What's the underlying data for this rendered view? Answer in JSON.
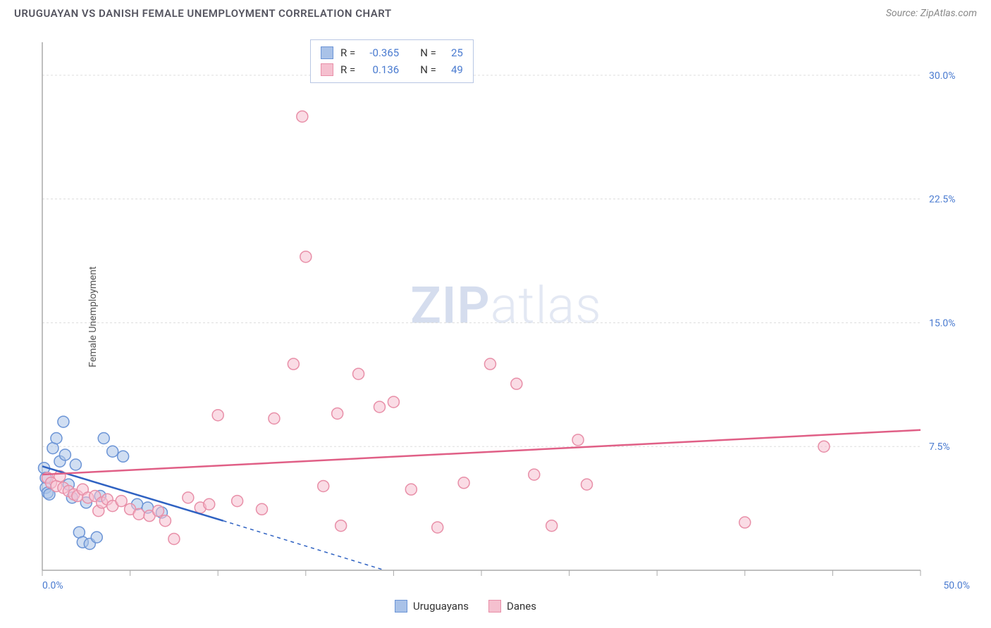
{
  "header": {
    "title": "URUGUAYAN VS DANISH FEMALE UNEMPLOYMENT CORRELATION CHART",
    "source": "Source: ZipAtlas.com"
  },
  "watermark": {
    "prefix": "ZIP",
    "suffix": "atlas"
  },
  "chart": {
    "type": "scatter",
    "y_axis_title": "Female Unemployment",
    "background_color": "#ffffff",
    "grid_color": "#dddddd",
    "axis_color": "#aaaaaa",
    "label_color": "#4a7bd0",
    "label_fontsize": 14,
    "xlim": [
      0,
      50
    ],
    "ylim": [
      0,
      32
    ],
    "x_ticks": [
      0,
      5,
      10,
      15,
      20,
      25,
      30,
      35,
      40,
      45,
      50
    ],
    "x_tick_labels": {
      "0": "0.0%",
      "50": "50.0%"
    },
    "y_ticks": [
      7.5,
      15.0,
      22.5,
      30.0
    ],
    "y_tick_labels": {
      "7.5": "7.5%",
      "15.0": "15.0%",
      "22.5": "22.5%",
      "30.0": "30.0%"
    },
    "marker_radius": 8,
    "marker_stroke_width": 1.5,
    "series": [
      {
        "name": "Uruguayans",
        "fill_color": "#a9c2e8",
        "stroke_color": "#6b94d6",
        "trend_color": "#2f62c2",
        "r": "-0.365",
        "n": "25",
        "trend": {
          "x1": 0,
          "y1": 6.3,
          "x2": 10.3,
          "y2": 3.0,
          "dash_x2": 19.5,
          "dash_y2": 0
        },
        "points": [
          [
            0.1,
            6.2
          ],
          [
            0.2,
            5.6
          ],
          [
            0.2,
            5.0
          ],
          [
            0.3,
            4.7
          ],
          [
            0.4,
            4.6
          ],
          [
            0.6,
            7.4
          ],
          [
            0.8,
            8.0
          ],
          [
            1.0,
            6.6
          ],
          [
            1.2,
            9.0
          ],
          [
            1.3,
            7.0
          ],
          [
            1.5,
            5.2
          ],
          [
            1.7,
            4.4
          ],
          [
            1.9,
            6.4
          ],
          [
            2.1,
            2.3
          ],
          [
            2.3,
            1.7
          ],
          [
            2.5,
            4.1
          ],
          [
            2.7,
            1.6
          ],
          [
            3.1,
            2.0
          ],
          [
            3.3,
            4.5
          ],
          [
            3.5,
            8.0
          ],
          [
            4.0,
            7.2
          ],
          [
            4.6,
            6.9
          ],
          [
            5.4,
            4.0
          ],
          [
            6.0,
            3.8
          ],
          [
            6.8,
            3.5
          ]
        ]
      },
      {
        "name": "Danes",
        "fill_color": "#f5c0cf",
        "stroke_color": "#e88fa8",
        "trend_color": "#e05f86",
        "r": "0.136",
        "n": "49",
        "trend": {
          "x1": 0,
          "y1": 5.8,
          "x2": 50,
          "y2": 8.5
        },
        "points": [
          [
            0.3,
            5.6
          ],
          [
            0.5,
            5.3
          ],
          [
            0.8,
            5.1
          ],
          [
            1.0,
            5.7
          ],
          [
            1.2,
            5.0
          ],
          [
            1.5,
            4.8
          ],
          [
            1.8,
            4.6
          ],
          [
            2.0,
            4.5
          ],
          [
            2.3,
            4.9
          ],
          [
            2.6,
            4.4
          ],
          [
            3.0,
            4.5
          ],
          [
            3.2,
            3.6
          ],
          [
            3.4,
            4.1
          ],
          [
            3.7,
            4.3
          ],
          [
            4.0,
            3.9
          ],
          [
            4.5,
            4.2
          ],
          [
            5.0,
            3.7
          ],
          [
            5.5,
            3.4
          ],
          [
            6.1,
            3.3
          ],
          [
            6.6,
            3.6
          ],
          [
            7.0,
            3.0
          ],
          [
            7.5,
            1.9
          ],
          [
            8.3,
            4.4
          ],
          [
            9.0,
            3.8
          ],
          [
            9.5,
            4.0
          ],
          [
            10.0,
            9.4
          ],
          [
            11.1,
            4.2
          ],
          [
            12.5,
            3.7
          ],
          [
            13.2,
            9.2
          ],
          [
            14.3,
            12.5
          ],
          [
            14.8,
            27.5
          ],
          [
            15.0,
            19.0
          ],
          [
            16.0,
            5.1
          ],
          [
            16.8,
            9.5
          ],
          [
            17.0,
            2.7
          ],
          [
            18.0,
            11.9
          ],
          [
            19.2,
            9.9
          ],
          [
            20.0,
            10.2
          ],
          [
            21.0,
            4.9
          ],
          [
            22.5,
            2.6
          ],
          [
            24.0,
            5.3
          ],
          [
            25.5,
            12.5
          ],
          [
            27.0,
            11.3
          ],
          [
            28.0,
            5.8
          ],
          [
            29.0,
            2.7
          ],
          [
            30.5,
            7.9
          ],
          [
            31.0,
            5.2
          ],
          [
            40.0,
            2.9
          ],
          [
            44.5,
            7.5
          ]
        ]
      }
    ],
    "top_legend": {
      "border_color": "#b8c6e3",
      "text_color": "#333333",
      "value_color": "#4a7bd0",
      "r_label": "R =",
      "n_label": "N ="
    },
    "bottom_legend_labels": [
      "Uruguayans",
      "Danes"
    ]
  }
}
